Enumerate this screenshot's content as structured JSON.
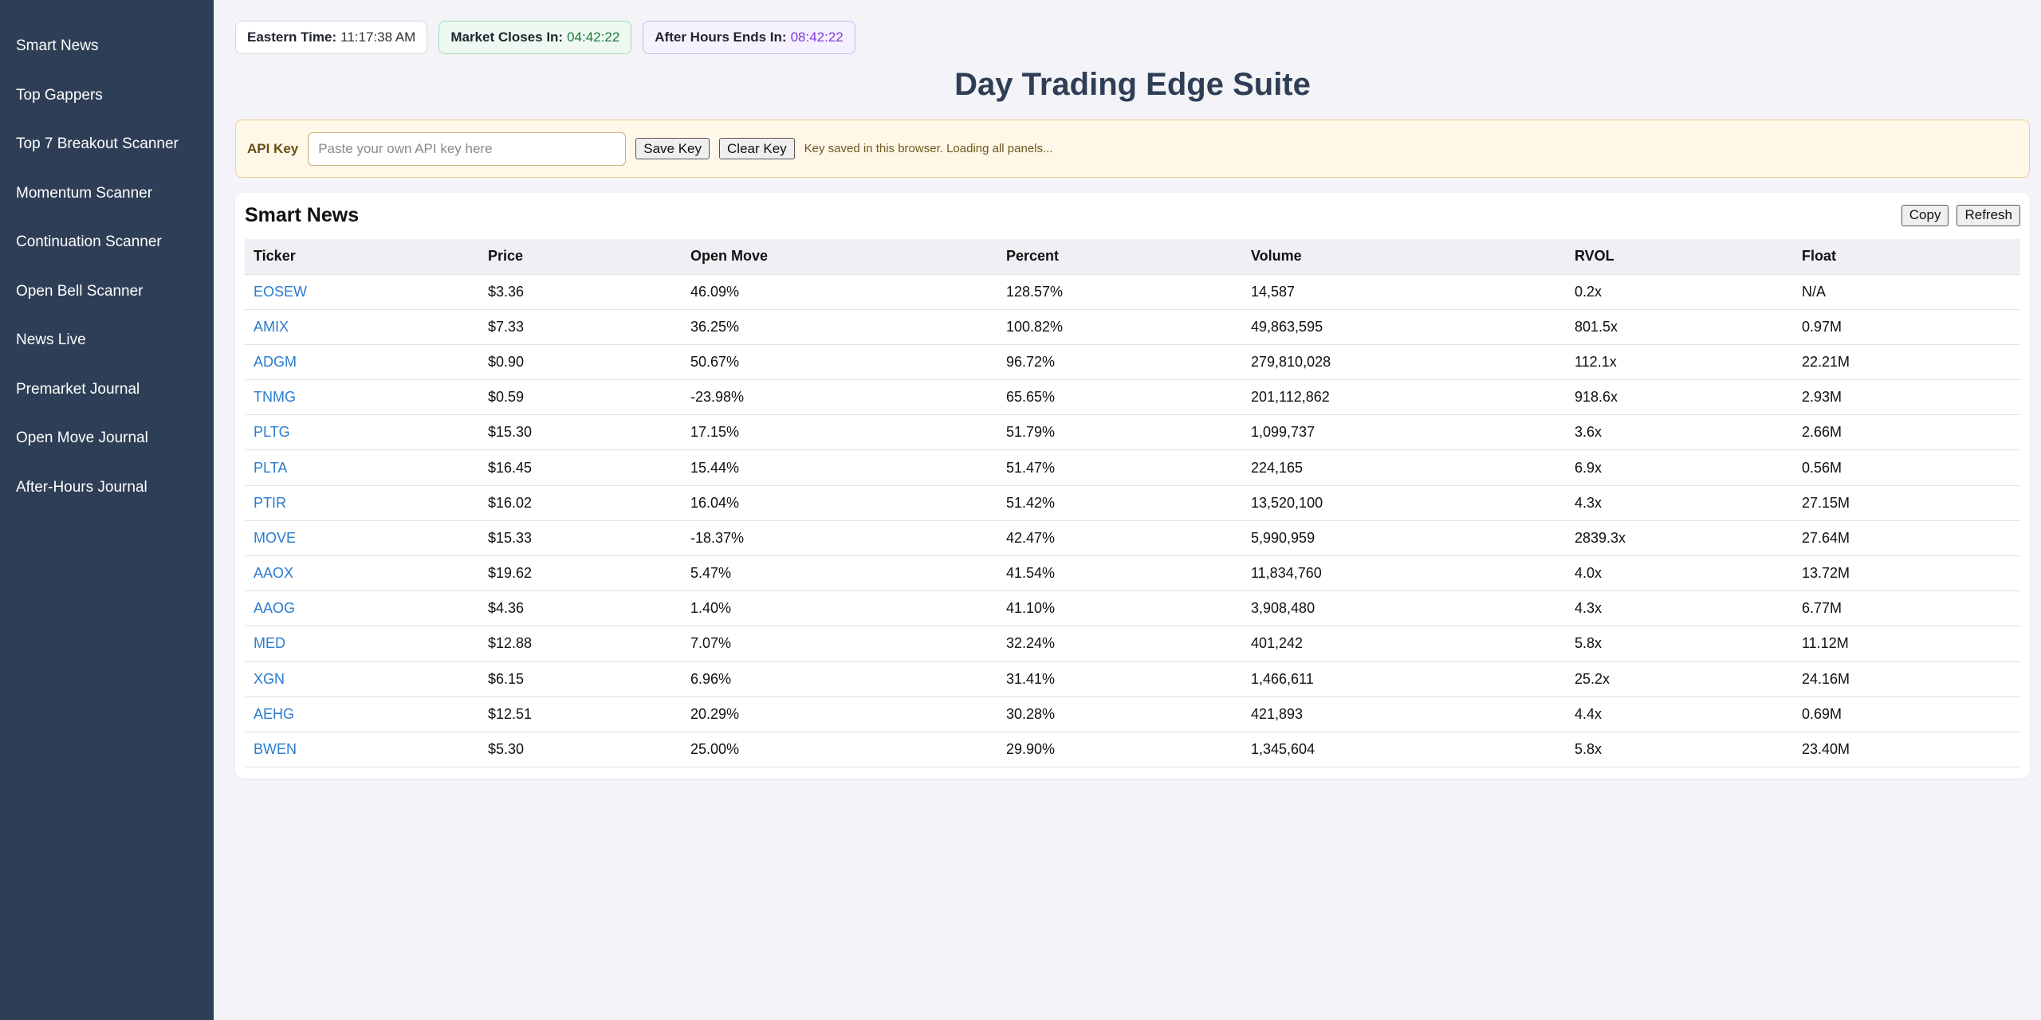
{
  "sidebar": {
    "items": [
      {
        "label": "Smart News"
      },
      {
        "label": "Top Gappers"
      },
      {
        "label": "Top 7 Breakout Scanner"
      },
      {
        "label": "Momentum Scanner"
      },
      {
        "label": "Continuation Scanner"
      },
      {
        "label": "Open Bell Scanner"
      },
      {
        "label": "News Live"
      },
      {
        "label": "Premarket Journal"
      },
      {
        "label": "Open Move Journal"
      },
      {
        "label": "After-Hours Journal"
      }
    ]
  },
  "status": {
    "eastern_label": "Eastern Time:",
    "eastern_value": "11:17:38 AM",
    "close_label": "Market Closes In:",
    "close_value": "04:42:22",
    "afterhours_label": "After Hours Ends In:",
    "afterhours_value": "08:42:22"
  },
  "page_title": "Day Trading Edge Suite",
  "api": {
    "label": "API Key",
    "placeholder": "Paste your own API key here",
    "save_label": "Save Key",
    "clear_label": "Clear Key",
    "status_text": "Key saved in this browser. Loading all panels..."
  },
  "panel": {
    "title": "Smart News",
    "copy_label": "Copy",
    "refresh_label": "Refresh",
    "columns": [
      "Ticker",
      "Price",
      "Open Move",
      "Percent",
      "Volume",
      "RVOL",
      "Float"
    ],
    "rows": [
      [
        "EOSEW",
        "$3.36",
        "46.09%",
        "128.57%",
        "14,587",
        "0.2x",
        "N/A"
      ],
      [
        "AMIX",
        "$7.33",
        "36.25%",
        "100.82%",
        "49,863,595",
        "801.5x",
        "0.97M"
      ],
      [
        "ADGM",
        "$0.90",
        "50.67%",
        "96.72%",
        "279,810,028",
        "112.1x",
        "22.21M"
      ],
      [
        "TNMG",
        "$0.59",
        "-23.98%",
        "65.65%",
        "201,112,862",
        "918.6x",
        "2.93M"
      ],
      [
        "PLTG",
        "$15.30",
        "17.15%",
        "51.79%",
        "1,099,737",
        "3.6x",
        "2.66M"
      ],
      [
        "PLTA",
        "$16.45",
        "15.44%",
        "51.47%",
        "224,165",
        "6.9x",
        "0.56M"
      ],
      [
        "PTIR",
        "$16.02",
        "16.04%",
        "51.42%",
        "13,520,100",
        "4.3x",
        "27.15M"
      ],
      [
        "MOVE",
        "$15.33",
        "-18.37%",
        "42.47%",
        "5,990,959",
        "2839.3x",
        "27.64M"
      ],
      [
        "AAOX",
        "$19.62",
        "5.47%",
        "41.54%",
        "11,834,760",
        "4.0x",
        "13.72M"
      ],
      [
        "AAOG",
        "$4.36",
        "1.40%",
        "41.10%",
        "3,908,480",
        "4.3x",
        "6.77M"
      ],
      [
        "MED",
        "$12.88",
        "7.07%",
        "32.24%",
        "401,242",
        "5.8x",
        "11.12M"
      ],
      [
        "XGN",
        "$6.15",
        "6.96%",
        "31.41%",
        "1,466,611",
        "25.2x",
        "24.16M"
      ],
      [
        "AEHG",
        "$12.51",
        "20.29%",
        "30.28%",
        "421,893",
        "4.4x",
        "0.69M"
      ],
      [
        "BWEN",
        "$5.30",
        "25.00%",
        "29.90%",
        "1,345,604",
        "5.8x",
        "23.40M"
      ]
    ]
  },
  "colors": {
    "sidebar_bg": "#2e3e56",
    "title": "#2f3e55",
    "link": "#2a7bd0",
    "close_value": "#1d7a3e",
    "afterhours_value": "#7e3bd6"
  }
}
